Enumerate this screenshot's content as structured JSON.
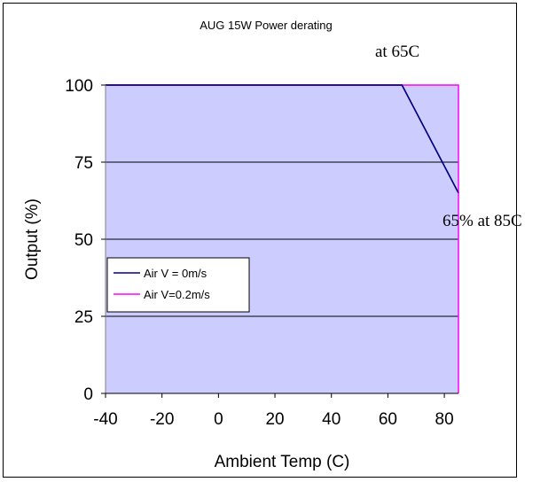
{
  "chart_data": {
    "type": "line",
    "title": "AUG 15W Power derating",
    "xlabel": "Ambient Temp (C)",
    "ylabel": "Output (%)",
    "xlim": [
      -40,
      85
    ],
    "ylim": [
      0,
      100
    ],
    "x_ticks": [
      "-40",
      "-20",
      "0",
      "20",
      "40",
      "60",
      "80"
    ],
    "x_tick_values": [
      -40,
      -20,
      0,
      20,
      40,
      60,
      80
    ],
    "y_ticks": [
      "0",
      "25",
      "50",
      "75",
      "100"
    ],
    "y_tick_values": [
      0,
      25,
      50,
      75,
      100
    ],
    "grid": "horizontal",
    "plot_background": "#CCCCFF",
    "legend_position": "left-middle",
    "series": [
      {
        "name": "Air V = 0m/s",
        "color": "#000080",
        "x": [
          -40,
          65,
          85
        ],
        "y": [
          100,
          100,
          65
        ]
      },
      {
        "name": "Air V=0.2m/s",
        "color": "#FF00FF",
        "x": [
          -40,
          85,
          85
        ],
        "y": [
          100,
          100,
          0
        ]
      }
    ],
    "annotations": [
      {
        "text": "at 65C"
      },
      {
        "text": "65% at 85C"
      }
    ]
  }
}
